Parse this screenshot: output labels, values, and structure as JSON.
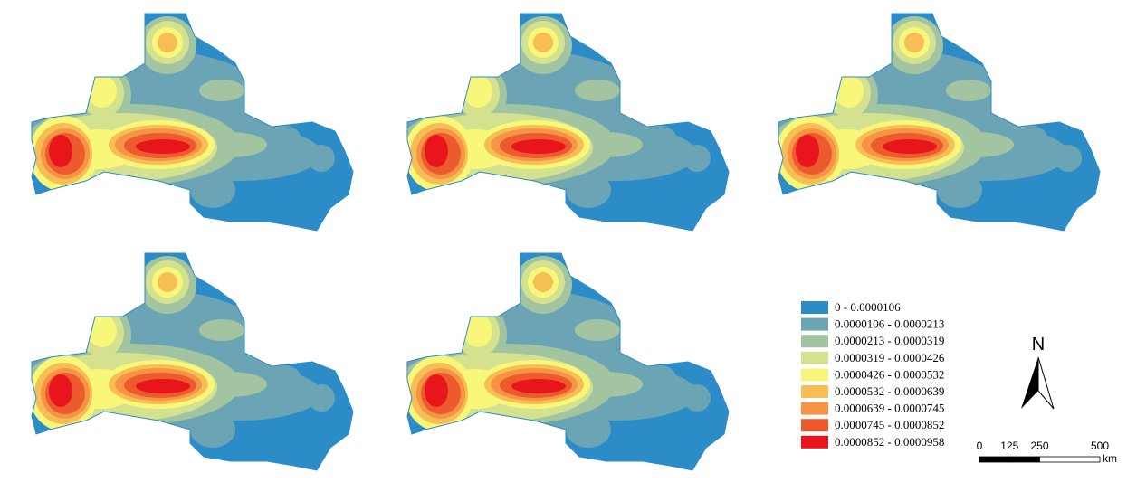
{
  "legend": [
    {
      "label": "0 - 0.0000106",
      "color": "#2b8cc8"
    },
    {
      "label": "0.0000106 - 0.0000213",
      "color": "#6ba5b5"
    },
    {
      "label": "0.0000213 - 0.0000319",
      "color": "#a2c4a0"
    },
    {
      "label": "0.0000319 - 0.0000426",
      "color": "#d4e290"
    },
    {
      "label": "0.0000426 - 0.0000532",
      "color": "#f8f77a"
    },
    {
      "label": "0.0000532 - 0.0000639",
      "color": "#f7be55"
    },
    {
      "label": "0.0000639 - 0.0000745",
      "color": "#f59444"
    },
    {
      "label": "0.0000745 - 0.0000852",
      "color": "#ec5a2d"
    },
    {
      "label": "0.0000852 - 0.0000958",
      "color": "#e8161c"
    }
  ],
  "north_arrow": "N",
  "scale_bar": {
    "ticks": [
      0,
      125,
      250,
      500
    ],
    "unit": "km"
  }
}
